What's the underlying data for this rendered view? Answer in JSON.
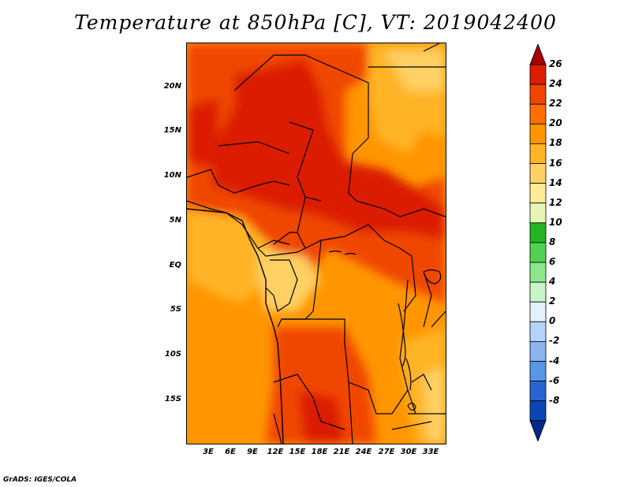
{
  "title": "Temperature at 850hPa [C], VT: 2019042400",
  "credit": "GrADS: IGES/COLA",
  "map": {
    "lat_labels": [
      "20N",
      "15N",
      "10N",
      "5N",
      "EQ",
      "5S",
      "10S",
      "15S"
    ],
    "lon_labels": [
      "3E",
      "6E",
      "9E",
      "12E",
      "15E",
      "18E",
      "21E",
      "24E",
      "27E",
      "30E",
      "33E"
    ]
  },
  "colorbar": {
    "labels": [
      "26",
      "24",
      "22",
      "20",
      "18",
      "16",
      "14",
      "12",
      "10",
      "8",
      "6",
      "4",
      "2",
      "0",
      "-2",
      "-4",
      "-6",
      "-8"
    ],
    "colors": [
      "#a50000",
      "#dc1e00",
      "#f04600",
      "#ff6e00",
      "#ff9600",
      "#ffb428",
      "#ffd064",
      "#ffeb96",
      "#e6f5b4",
      "#22b422",
      "#50d250",
      "#8ce68c",
      "#c8f5c8",
      "#e6f0fa",
      "#b4d2fa",
      "#8cb4f0",
      "#5a96e6",
      "#2864d2",
      "#0a46b4",
      "#00288c"
    ]
  }
}
